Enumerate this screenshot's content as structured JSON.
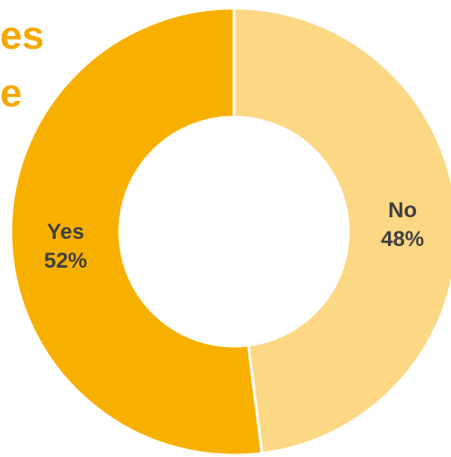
{
  "chart_data": {
    "type": "pie",
    "variant": "donut",
    "title_fragment": "es\ne",
    "categories": [
      "No",
      "Yes"
    ],
    "values": [
      48,
      52
    ],
    "value_labels": [
      "48%",
      "52%"
    ],
    "colors": [
      "#FCD784",
      "#F8B000"
    ],
    "legend": "none"
  },
  "colors": {
    "title": "#F5A800",
    "label_text": "#404040",
    "separator": "#ffffff"
  }
}
